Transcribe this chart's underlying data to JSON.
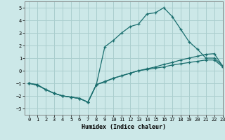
{
  "xlabel": "Humidex (Indice chaleur)",
  "ylabel": "",
  "bg_color": "#cce8e8",
  "grid_color": "#aacece",
  "line_color": "#1a6e6e",
  "xlim": [
    -0.5,
    23
  ],
  "ylim": [
    -3.5,
    5.5
  ],
  "yticks": [
    -3,
    -2,
    -1,
    0,
    1,
    2,
    3,
    4,
    5
  ],
  "xticks": [
    0,
    1,
    2,
    3,
    4,
    5,
    6,
    7,
    8,
    9,
    10,
    11,
    12,
    13,
    14,
    15,
    16,
    17,
    18,
    19,
    20,
    21,
    22,
    23
  ],
  "line1_x": [
    0,
    1,
    2,
    3,
    4,
    5,
    6,
    7,
    8,
    9,
    10,
    11,
    12,
    13,
    14,
    15,
    16,
    17,
    18,
    19,
    20,
    21,
    22,
    23
  ],
  "line1_y": [
    -1.0,
    -1.1,
    -1.5,
    -1.8,
    -2.0,
    -2.1,
    -2.2,
    -2.5,
    -1.1,
    1.9,
    2.4,
    3.0,
    3.5,
    3.7,
    4.5,
    4.6,
    5.0,
    4.3,
    3.3,
    2.3,
    1.7,
    1.0,
    1.0,
    0.4
  ],
  "line2_x": [
    0,
    1,
    2,
    3,
    4,
    5,
    6,
    7,
    8,
    9,
    10,
    11,
    12,
    13,
    14,
    15,
    16,
    17,
    18,
    19,
    20,
    21,
    22,
    23
  ],
  "line2_y": [
    -1.0,
    -1.15,
    -1.5,
    -1.8,
    -2.0,
    -2.1,
    -2.2,
    -2.5,
    -1.1,
    -0.9,
    -0.6,
    -0.4,
    -0.2,
    0.0,
    0.15,
    0.3,
    0.5,
    0.65,
    0.85,
    1.0,
    1.15,
    1.3,
    1.35,
    0.35
  ],
  "line3_x": [
    0,
    1,
    2,
    3,
    4,
    5,
    6,
    7,
    8,
    9,
    10,
    11,
    12,
    13,
    14,
    15,
    16,
    17,
    18,
    19,
    20,
    21,
    22,
    23
  ],
  "line3_y": [
    -1.0,
    -1.15,
    -1.5,
    -1.8,
    -2.0,
    -2.1,
    -2.2,
    -2.5,
    -1.1,
    -0.85,
    -0.6,
    -0.4,
    -0.2,
    0.0,
    0.1,
    0.2,
    0.3,
    0.45,
    0.55,
    0.65,
    0.75,
    0.85,
    0.85,
    0.3
  ],
  "marker": "+"
}
